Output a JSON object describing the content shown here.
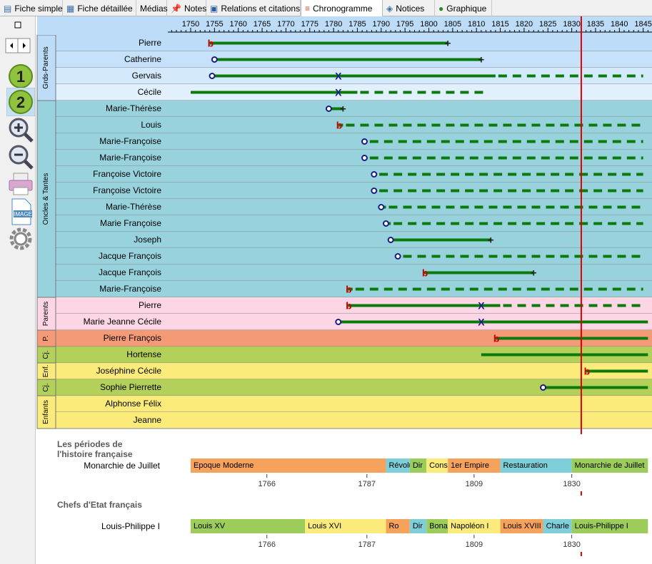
{
  "tabs": [
    {
      "label": "Fiche simple",
      "icon": "fiche-simple-icon",
      "active": false
    },
    {
      "label": "Fiche détaillée",
      "icon": "fiche-detail-icon",
      "active": false
    },
    {
      "label": "Médias",
      "icon": "",
      "active": false
    },
    {
      "label": "Notes",
      "icon": "pin-icon",
      "active": false
    },
    {
      "label": "Relations et citations",
      "icon": "relations-icon",
      "active": false
    },
    {
      "label": "Chronogramme",
      "icon": "timeline-icon",
      "active": true
    },
    {
      "label": "Notices",
      "icon": "book-icon",
      "active": false
    },
    {
      "label": "Graphique",
      "icon": "tree-icon",
      "active": false
    }
  ],
  "toolbar": [
    "maximize-icon",
    "nav-arrows-icon",
    "level-1-icon",
    "level-2-icon",
    "zoom-in-icon",
    "zoom-out-icon",
    "print-icon",
    "image-export-icon",
    "settings-icon"
  ],
  "timeline": {
    "years": [
      1750,
      1755,
      1760,
      1765,
      1770,
      1775,
      1780,
      1785,
      1790,
      1795,
      1800,
      1805,
      1810,
      1815,
      1820,
      1825,
      1830,
      1835,
      1840,
      1845
    ],
    "current_year": 1832,
    "colors": {
      "line": "#0a7a0a",
      "cursor": "#e00000",
      "birth": "#cc0000",
      "approx": "#1a1a8a"
    },
    "groups": [
      {
        "label": "Grds-Parents",
        "rows": [
          0,
          3
        ]
      },
      {
        "label": "Oncles & Tantes",
        "rows": [
          4,
          15
        ]
      },
      {
        "label": "Parents",
        "rows": [
          16,
          17
        ]
      },
      {
        "label": "P.",
        "rows": [
          18,
          18
        ]
      },
      {
        "label": "Cj.",
        "rows": [
          19,
          19
        ]
      },
      {
        "label": "Enf.",
        "rows": [
          20,
          20
        ]
      },
      {
        "label": "Cj.",
        "rows": [
          21,
          21
        ]
      },
      {
        "label": "Enfants",
        "rows": [
          22,
          23
        ]
      }
    ],
    "people": [
      {
        "name": "Pierre",
        "bg": "#bcdcf8",
        "start": 1754,
        "startMark": "b",
        "end": 1804,
        "endMark": "+",
        "dash": null,
        "x": null
      },
      {
        "name": "Catherine",
        "bg": "#c6e2fa",
        "start": 1755,
        "startMark": "o",
        "end": 1811,
        "endMark": "+",
        "dash": null,
        "x": null
      },
      {
        "name": "Gervais",
        "bg": "#d4e9fc",
        "start": 1754.5,
        "startMark": "o",
        "end": 1814,
        "endMark": "",
        "dash": 1845,
        "x": 1781
      },
      {
        "name": "Cécile",
        "bg": "#e2f0fd",
        "start": 1750,
        "startMark": "",
        "end": 1785,
        "endMark": "",
        "dash": 1812,
        "x": 1781
      },
      {
        "name": "Marie-Thérèse",
        "bg": "#98d3dd",
        "start": 1779,
        "startMark": "o",
        "end": 1782,
        "endMark": "+",
        "dash": null,
        "x": null
      },
      {
        "name": "Louis",
        "bg": "#98d3dd",
        "start": 1781,
        "startMark": "b",
        "end": 1782,
        "endMark": "",
        "dash": 1845,
        "x": null
      },
      {
        "name": "Marie-Françoise",
        "bg": "#98d3dd",
        "start": 1786.5,
        "startMark": "o",
        "end": 1787,
        "endMark": "",
        "dash": 1845,
        "x": null
      },
      {
        "name": "Marie-Françoise",
        "bg": "#98d3dd",
        "start": 1786.5,
        "startMark": "o",
        "end": 1787,
        "endMark": "",
        "dash": 1845,
        "x": null
      },
      {
        "name": "Françoise Victoire",
        "bg": "#98d3dd",
        "start": 1788.5,
        "startMark": "o",
        "end": 1789,
        "endMark": "",
        "dash": 1845,
        "x": null
      },
      {
        "name": "Françoise Victoire",
        "bg": "#98d3dd",
        "start": 1788.5,
        "startMark": "o",
        "end": 1789,
        "endMark": "",
        "dash": 1845,
        "x": null
      },
      {
        "name": "Marie-Thérèse",
        "bg": "#98d3dd",
        "start": 1790,
        "startMark": "o",
        "end": 1791,
        "endMark": "",
        "dash": 1845,
        "x": null
      },
      {
        "name": "Marie Françoise",
        "bg": "#98d3dd",
        "start": 1791,
        "startMark": "o",
        "end": 1792,
        "endMark": "",
        "dash": 1845,
        "x": null
      },
      {
        "name": "Joseph",
        "bg": "#98d3dd",
        "start": 1792,
        "startMark": "o",
        "end": 1813,
        "endMark": "+",
        "dash": null,
        "x": null
      },
      {
        "name": "Jacque François",
        "bg": "#98d3dd",
        "start": 1793.5,
        "startMark": "o",
        "end": 1794,
        "endMark": "",
        "dash": 1845,
        "x": null
      },
      {
        "name": "Jacque François",
        "bg": "#98d3dd",
        "start": 1799,
        "startMark": "b",
        "end": 1822,
        "endMark": "+",
        "dash": null,
        "x": null
      },
      {
        "name": "Marie-Françoise",
        "bg": "#98d3dd",
        "start": 1783,
        "startMark": "b",
        "end": 1784,
        "endMark": "",
        "dash": 1845,
        "x": null
      },
      {
        "name": "Pierre",
        "bg": "#fcd6e4",
        "start": 1783,
        "startMark": "b",
        "end": 1815,
        "endMark": "",
        "dash": 1845,
        "x": 1811
      },
      {
        "name": "Marie Jeanne Cécile",
        "bg": "#fcd6e4",
        "start": 1781,
        "startMark": "o",
        "end": 1846,
        "endMark": "",
        "dash": null,
        "x": 1811
      },
      {
        "name": "Pierre François",
        "bg": "#f59a77",
        "start": 1814,
        "startMark": "b",
        "end": 1846,
        "endMark": "",
        "dash": null,
        "x": null
      },
      {
        "name": "Hortense",
        "bg": "#b2d05a",
        "start": 1811,
        "startMark": "",
        "end": 1846,
        "endMark": "",
        "dash": null,
        "x": null
      },
      {
        "name": "Joséphine Cécile",
        "bg": "#faeb7a",
        "start": 1833,
        "startMark": "b",
        "end": 1846,
        "endMark": "",
        "dash": null,
        "x": null
      },
      {
        "name": "Sophie Pierrette",
        "bg": "#b2d05a",
        "start": 1824,
        "startMark": "o",
        "end": 1846,
        "endMark": "",
        "dash": null,
        "x": null
      },
      {
        "name": "Alphonse Félix",
        "bg": "#faeb7a",
        "start": null,
        "startMark": "",
        "end": null,
        "endMark": "",
        "dash": null,
        "x": null
      },
      {
        "name": "Jeanne",
        "bg": "#faeb7a",
        "start": null,
        "startMark": "",
        "end": null,
        "endMark": "",
        "dash": null,
        "x": null
      }
    ]
  },
  "history": {
    "title1": "Les périodes de",
    "title2": "l'histoire française",
    "current": "Monarchie de Juillet",
    "periods": [
      {
        "label": "Epoque Moderne",
        "start": 1750,
        "end": 1791,
        "color": "#f5a25c"
      },
      {
        "label": "Révolu",
        "start": 1791,
        "end": 1796,
        "color": "#7ecfd9"
      },
      {
        "label": "Dir",
        "start": 1796,
        "end": 1799.5,
        "color": "#9ccc5a"
      },
      {
        "label": "Cons",
        "start": 1799.5,
        "end": 1804,
        "color": "#faeb7a"
      },
      {
        "label": "1er Empire",
        "start": 1804,
        "end": 1815,
        "color": "#f5a25c"
      },
      {
        "label": "Restauration",
        "start": 1815,
        "end": 1830,
        "color": "#7ecfd9"
      },
      {
        "label": "Monarchie de Juillet",
        "start": 1830,
        "end": 1846,
        "color": "#9ccc5a"
      }
    ],
    "tick_years": [
      "1766",
      "1787",
      "1809",
      "1830"
    ]
  },
  "chefs": {
    "title": "Chefs d'Etat français",
    "current": "Louis-Philippe I",
    "periods": [
      {
        "label": "Louis XV",
        "start": 1750,
        "end": 1774,
        "color": "#9ccc5a"
      },
      {
        "label": "Louis XVI",
        "start": 1774,
        "end": 1791,
        "color": "#faeb7a"
      },
      {
        "label": "Ro",
        "start": 1791,
        "end": 1796,
        "color": "#f5a25c"
      },
      {
        "label": "Dir",
        "start": 1796,
        "end": 1799.5,
        "color": "#7ecfd9"
      },
      {
        "label": "Bona",
        "start": 1799.5,
        "end": 1804,
        "color": "#9ccc5a"
      },
      {
        "label": "Napoléon I",
        "start": 1804,
        "end": 1815,
        "color": "#faeb7a"
      },
      {
        "label": "Louis XVIII",
        "start": 1815,
        "end": 1824,
        "color": "#f5a25c"
      },
      {
        "label": "Charle",
        "start": 1824,
        "end": 1830,
        "color": "#7ecfd9"
      },
      {
        "label": "Louis-Philippe I",
        "start": 1830,
        "end": 1846,
        "color": "#9ccc5a"
      }
    ],
    "tick_years": [
      "1766",
      "1787",
      "1809",
      "1830"
    ]
  }
}
